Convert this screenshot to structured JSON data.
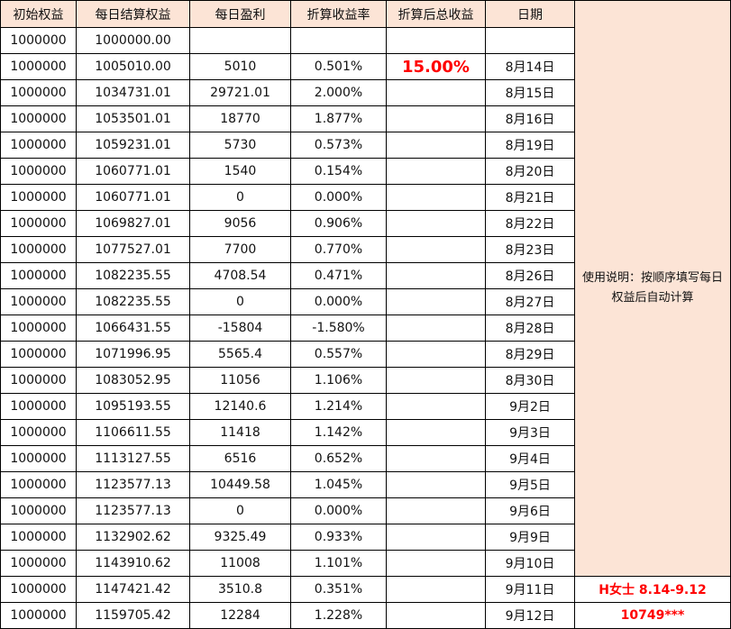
{
  "headers": [
    "初始权益",
    "每日结算权益",
    "每日盈利",
    "折算收益率",
    "折算后总收益",
    "日期"
  ],
  "total_return": "15.00%",
  "note": "使用说明：按顺序填写每日权益后自动计算",
  "footer_name": "H女士  8.14-9.12",
  "footer_id": "10749***",
  "colors": {
    "header_bg": "#fce4d6",
    "highlight": "#ff0000"
  },
  "rows": [
    [
      "1000000",
      "1000000.00",
      "",
      "",
      "",
      ""
    ],
    [
      "1000000",
      "1005010.00",
      "5010",
      "0.501%",
      "",
      "8月14日"
    ],
    [
      "1000000",
      "1034731.01",
      "29721.01",
      "2.000%",
      "",
      "8月15日"
    ],
    [
      "1000000",
      "1053501.01",
      "18770",
      "1.877%",
      "",
      "8月16日"
    ],
    [
      "1000000",
      "1059231.01",
      "5730",
      "0.573%",
      "",
      "8月19日"
    ],
    [
      "1000000",
      "1060771.01",
      "1540",
      "0.154%",
      "",
      "8月20日"
    ],
    [
      "1000000",
      "1060771.01",
      "0",
      "0.000%",
      "",
      "8月21日"
    ],
    [
      "1000000",
      "1069827.01",
      "9056",
      "0.906%",
      "",
      "8月22日"
    ],
    [
      "1000000",
      "1077527.01",
      "7700",
      "0.770%",
      "",
      "8月23日"
    ],
    [
      "1000000",
      "1082235.55",
      "4708.54",
      "0.471%",
      "",
      "8月26日"
    ],
    [
      "1000000",
      "1082235.55",
      "0",
      "0.000%",
      "",
      "8月27日"
    ],
    [
      "1000000",
      "1066431.55",
      "-15804",
      "-1.580%",
      "",
      "8月28日"
    ],
    [
      "1000000",
      "1071996.95",
      "5565.4",
      "0.557%",
      "",
      "8月29日"
    ],
    [
      "1000000",
      "1083052.95",
      "11056",
      "1.106%",
      "",
      "8月30日"
    ],
    [
      "1000000",
      "1095193.55",
      "12140.6",
      "1.214%",
      "",
      "9月2日"
    ],
    [
      "1000000",
      "1106611.55",
      "11418",
      "1.142%",
      "",
      "9月3日"
    ],
    [
      "1000000",
      "1113127.55",
      "6516",
      "0.652%",
      "",
      "9月4日"
    ],
    [
      "1000000",
      "1123577.13",
      "10449.58",
      "1.045%",
      "",
      "9月5日"
    ],
    [
      "1000000",
      "1123577.13",
      "0",
      "0.000%",
      "",
      "9月6日"
    ],
    [
      "1000000",
      "1132902.62",
      "9325.49",
      "0.933%",
      "",
      "9月9日"
    ],
    [
      "1000000",
      "1143910.62",
      "11008",
      "1.101%",
      "",
      "9月10日"
    ],
    [
      "1000000",
      "1147421.42",
      "3510.8",
      "0.351%",
      "",
      "9月11日"
    ],
    [
      "1000000",
      "1159705.42",
      "12284",
      "1.228%",
      "",
      "9月12日"
    ]
  ]
}
